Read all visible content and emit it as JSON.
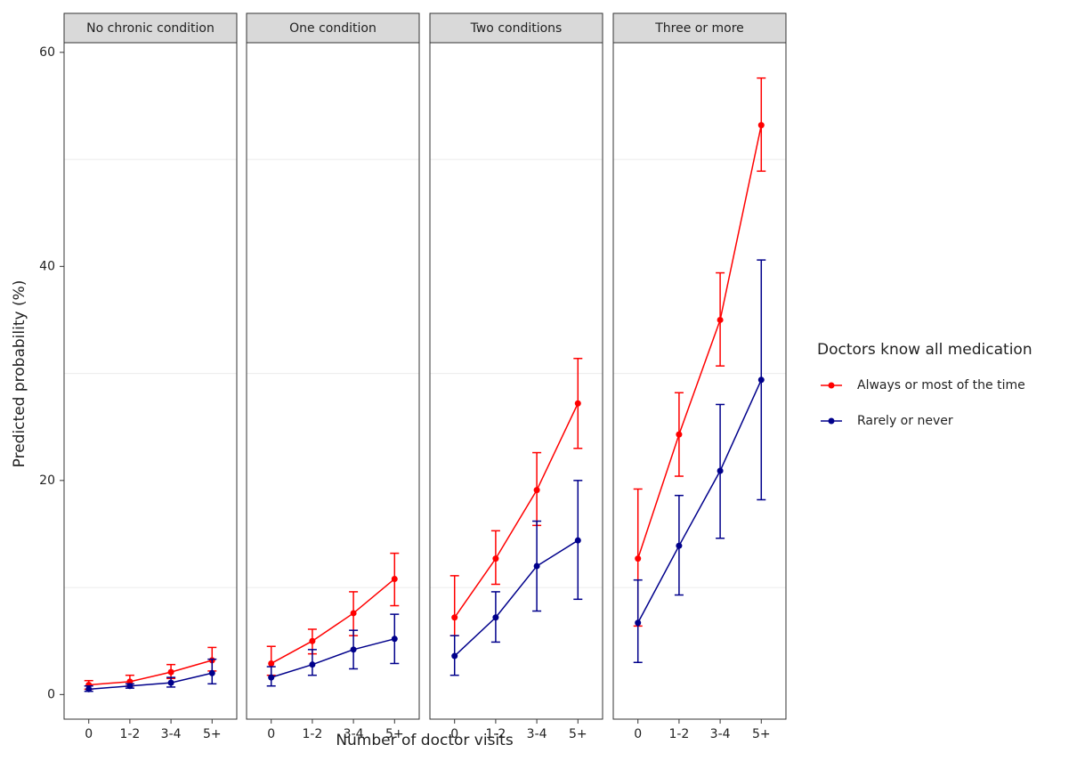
{
  "chart_data": {
    "type": "line",
    "x_label": "Number of doctor visits",
    "y_label": "Predicted probability (%)",
    "categories": [
      "0",
      "1-2",
      "3-4",
      "5+"
    ],
    "ylim": [
      -2.3,
      60.9
    ],
    "yticks": [
      0,
      20,
      40,
      60
    ],
    "minor_grid": [
      10,
      30,
      50
    ],
    "legend_title": "Doctors know all medication",
    "legend_position": "right",
    "series_names": [
      "Always or most of the time",
      "Rarely or never"
    ],
    "series_colors": [
      "#ff0000",
      "#00008b"
    ],
    "facets": [
      {
        "title": "No chronic condition",
        "series": [
          {
            "values": [
              0.9,
              1.2,
              2.1,
              3.2
            ],
            "lower": [
              0.5,
              0.8,
              1.5,
              2.2
            ],
            "upper": [
              1.3,
              1.8,
              2.8,
              4.4
            ]
          },
          {
            "values": [
              0.5,
              0.8,
              1.1,
              2.0
            ],
            "lower": [
              0.3,
              0.6,
              0.7,
              1.0
            ],
            "upper": [
              0.8,
              1.0,
              1.6,
              3.3
            ]
          }
        ]
      },
      {
        "title": "One condition",
        "series": [
          {
            "values": [
              2.9,
              5.0,
              7.6,
              10.8
            ],
            "lower": [
              1.8,
              3.8,
              5.5,
              8.3
            ],
            "upper": [
              4.5,
              6.1,
              9.6,
              13.2
            ]
          },
          {
            "values": [
              1.6,
              2.8,
              4.2,
              5.2
            ],
            "lower": [
              0.8,
              1.8,
              2.4,
              2.9
            ],
            "upper": [
              2.6,
              4.2,
              6.0,
              7.5
            ]
          }
        ]
      },
      {
        "title": "Two conditions",
        "series": [
          {
            "values": [
              7.2,
              12.7,
              19.1,
              27.2
            ],
            "lower": [
              5.5,
              10.3,
              15.8,
              23.0
            ],
            "upper": [
              11.1,
              15.3,
              22.6,
              31.4
            ]
          },
          {
            "values": [
              3.6,
              7.2,
              12.0,
              14.4
            ],
            "lower": [
              1.8,
              4.9,
              7.8,
              8.9
            ],
            "upper": [
              5.5,
              9.6,
              16.2,
              20.0
            ]
          }
        ]
      },
      {
        "title": "Three or more",
        "series": [
          {
            "values": [
              12.7,
              24.3,
              35.0,
              53.2
            ],
            "lower": [
              6.4,
              20.4,
              30.7,
              48.9
            ],
            "upper": [
              19.2,
              28.2,
              39.4,
              57.6
            ]
          },
          {
            "values": [
              6.7,
              13.9,
              20.9,
              29.4
            ],
            "lower": [
              3.0,
              9.3,
              14.6,
              18.2
            ],
            "upper": [
              10.7,
              18.6,
              27.1,
              40.6
            ]
          }
        ]
      }
    ]
  }
}
